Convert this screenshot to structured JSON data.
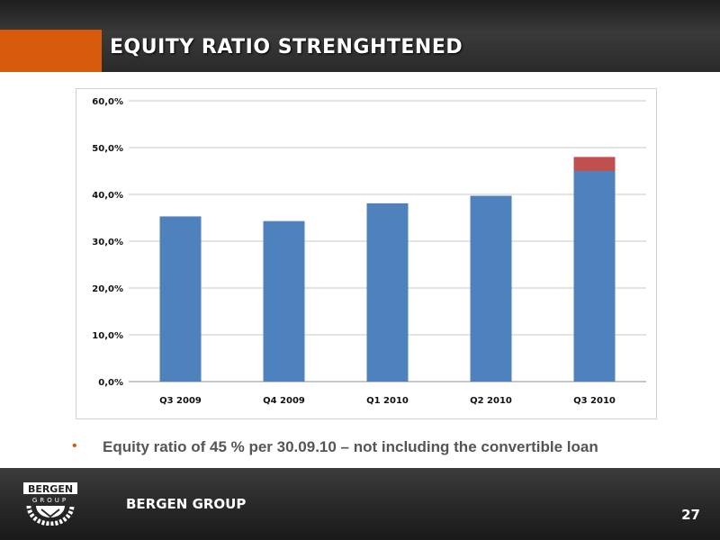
{
  "slide": {
    "title": "EQUITY RATIO STRENGHTENED",
    "bullet": "Equity ratio of 45 % per 30.09.10 – not including the convertible loan",
    "bullet_marker": "•",
    "footer_brand": "BERGEN GROUP",
    "page_number": "27",
    "logo_text_top": "BERGEN",
    "logo_text_bottom": "GROUP"
  },
  "colors": {
    "accent_orange": "#d85a0c",
    "series_blue": "#4f81bd",
    "series_red": "#c0504d",
    "gridline": "#c8c8c8"
  },
  "chart_data": {
    "type": "bar",
    "stacked": true,
    "categories": [
      "Q3 2009",
      "Q4 2009",
      "Q1 2010",
      "Q2 2010",
      "Q3 2010"
    ],
    "series": [
      {
        "values": [
          35.3,
          34.3,
          38.1,
          39.7,
          45.0
        ],
        "color": "#4f81bd"
      },
      {
        "values": [
          0,
          0,
          0,
          0,
          3.0
        ],
        "color": "#c0504d"
      }
    ],
    "ylim": [
      0,
      60
    ],
    "yticks": [
      0,
      10,
      20,
      30,
      40,
      50,
      60
    ],
    "ytick_labels": [
      "0,0%",
      "10,0%",
      "20,0%",
      "30,0%",
      "40,0%",
      "50,0%",
      "60,0%"
    ],
    "grid": true,
    "title": "",
    "xlabel": "",
    "ylabel": ""
  }
}
